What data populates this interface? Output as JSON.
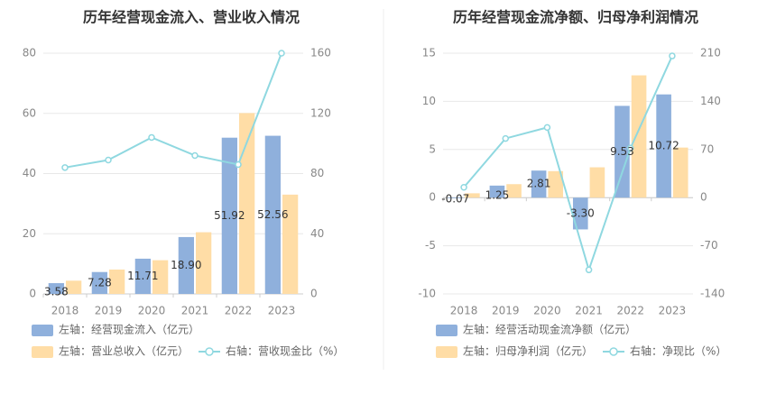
{
  "colors": {
    "bar_left": "#8fb0dc",
    "bar_right": "#ffdda6",
    "line": "#8fd8e0",
    "grid": "#e8e8e8",
    "axis_text": "#888888",
    "divider": "#eeeeee"
  },
  "chart_data": [
    {
      "type": "bar",
      "title": "历年经营现金流入、营业收入情况",
      "categories": [
        "2018",
        "2019",
        "2020",
        "2021",
        "2022",
        "2023"
      ],
      "y_left": {
        "ticks": [
          "0",
          "20",
          "40",
          "60",
          "80"
        ],
        "ylim": [
          0,
          80
        ]
      },
      "y_right": {
        "ticks": [
          "0",
          "40",
          "80",
          "120",
          "160"
        ],
        "ylim": [
          0,
          160
        ]
      },
      "series": [
        {
          "name": "左轴：经营现金流入（亿元）",
          "type": "bar",
          "axis": "left",
          "color": "#8fb0dc",
          "values": [
            3.58,
            7.28,
            11.71,
            18.9,
            51.92,
            52.56
          ],
          "labels": [
            "3.58",
            "7.28",
            "11.71",
            "18.90",
            "51.92",
            "52.56"
          ]
        },
        {
          "name": "左轴：营业总收入（亿元）",
          "type": "bar",
          "axis": "left",
          "color": "#ffdda6",
          "values": [
            4.4,
            8.1,
            11.2,
            20.5,
            60.1,
            33.0
          ]
        },
        {
          "name": "右轴：营收现金比（%）",
          "type": "line",
          "axis": "right",
          "color": "#8fd8e0",
          "values": [
            84,
            89,
            104,
            92,
            86,
            160
          ]
        }
      ],
      "legend": [
        "左轴：经营现金流入（亿元）",
        "左轴：营业总收入（亿元）",
        "右轴：营收现金比（%）"
      ],
      "grid": true
    },
    {
      "type": "bar",
      "title": "历年经营现金流净额、归母净利润情况",
      "categories": [
        "2018",
        "2019",
        "2020",
        "2021",
        "2022",
        "2023"
      ],
      "y_left": {
        "ticks": [
          "-10",
          "-5",
          "0",
          "5",
          "10",
          "15"
        ],
        "ylim": [
          -10,
          15
        ]
      },
      "y_right": {
        "ticks": [
          "-140",
          "-70",
          "0",
          "70",
          "140",
          "210"
        ],
        "ylim": [
          -140,
          210
        ]
      },
      "series": [
        {
          "name": "左轴：经营活动现金流净额（亿元）",
          "type": "bar",
          "axis": "left",
          "color": "#8fb0dc",
          "values": [
            -0.07,
            1.25,
            2.81,
            -3.3,
            9.53,
            10.72
          ],
          "labels": [
            "-0.07",
            "1.25",
            "2.81",
            "-3.30",
            "9.53",
            "10.72"
          ]
        },
        {
          "name": "左轴：归母净利润（亿元）",
          "type": "bar",
          "axis": "left",
          "color": "#ffdda6",
          "values": [
            0.45,
            1.4,
            2.75,
            3.15,
            12.7,
            5.2
          ]
        },
        {
          "name": "右轴：净现比（%）",
          "type": "line",
          "axis": "right",
          "color": "#8fd8e0",
          "values": [
            15,
            86,
            102,
            -105,
            72,
            206
          ]
        }
      ],
      "legend": [
        "左轴：经营活动现金流净额（亿元）",
        "左轴：归母净利润（亿元）",
        "右轴：净现比（%）"
      ],
      "grid": true
    }
  ]
}
